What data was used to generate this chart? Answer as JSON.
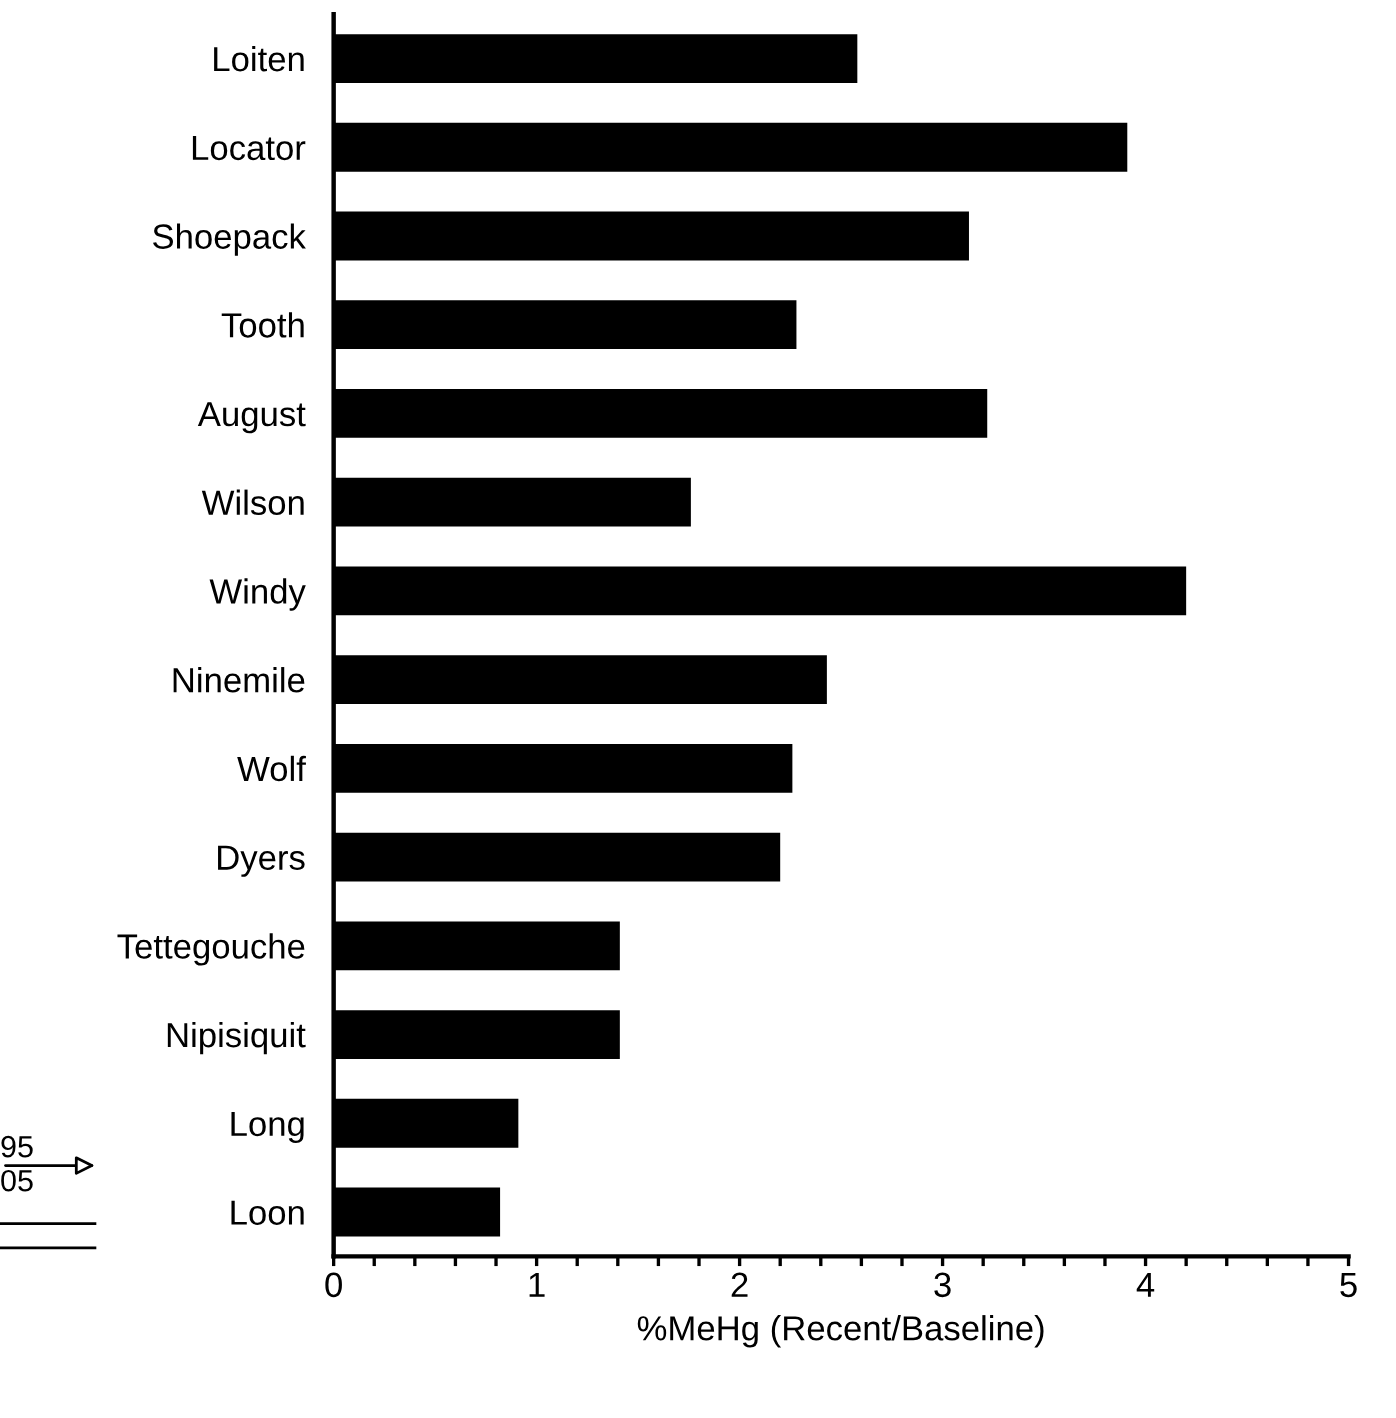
{
  "chart_data": {
    "type": "bar",
    "orientation": "horizontal",
    "xlabel": "%MeHg (Recent/Baseline)",
    "categories": [
      "Loiten",
      "Locator",
      "Shoepack",
      "Tooth",
      "August",
      "Wilson",
      "Windy",
      "Ninemile",
      "Wolf",
      "Dyers",
      "Tettegouche",
      "Nipisiquit",
      "Long",
      "Loon"
    ],
    "values": [
      2.58,
      3.91,
      3.13,
      2.28,
      3.22,
      1.76,
      4.2,
      2.43,
      2.26,
      2.2,
      1.41,
      1.41,
      0.91,
      0.82
    ],
    "color": "#000000",
    "xlim": [
      0,
      5
    ],
    "xticks": [
      0,
      {
        "value": 0.2,
        "label": null
      },
      {
        "value": 0.4,
        "label": null
      },
      {
        "value": 0.6,
        "label": null
      },
      {
        "value": 0.8,
        "label": null
      },
      1,
      {
        "value": 1.2,
        "label": null
      },
      {
        "value": 1.4,
        "label": null
      },
      {
        "value": 1.6,
        "label": null
      },
      {
        "value": 1.8,
        "label": null
      },
      2,
      {
        "value": 2.2,
        "label": null
      },
      {
        "value": 2.4,
        "label": null
      },
      {
        "value": 2.6,
        "label": null
      },
      {
        "value": 2.8,
        "label": null
      },
      3,
      {
        "value": 3.2,
        "label": null
      },
      {
        "value": 3.4,
        "label": null
      },
      {
        "value": 3.6,
        "label": null
      },
      {
        "value": 3.8,
        "label": null
      },
      4,
      {
        "value": 4.2,
        "label": null
      },
      {
        "value": 4.4,
        "label": null
      },
      {
        "value": 4.6,
        "label": null
      },
      {
        "value": 4.8,
        "label": null
      },
      5
    ],
    "grid": false,
    "legend": false,
    "annotations": [
      "95",
      "05"
    ]
  }
}
